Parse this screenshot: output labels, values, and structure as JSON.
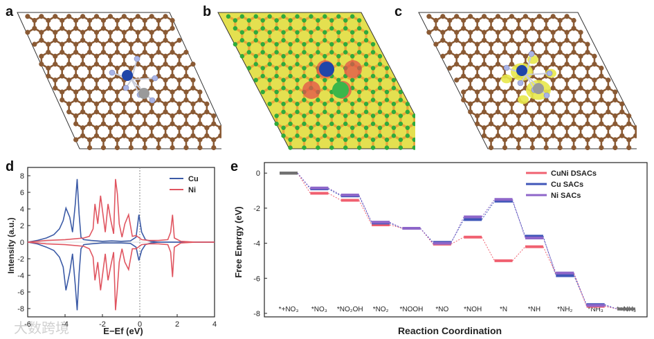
{
  "panels": {
    "a": {
      "label": "a"
    },
    "b": {
      "label": "b"
    },
    "c": {
      "label": "c"
    },
    "d": {
      "label": "d"
    },
    "e": {
      "label": "e"
    }
  },
  "colors": {
    "carbon": "#8a5a34",
    "nitrogen": "#a9b4e6",
    "cu": "#1f45a8",
    "ni": "#9a9a9a",
    "yellow": "#e8e84a",
    "cu_line": "#3b5aa6",
    "ni_line": "#e05560",
    "dsac": "#f06070",
    "cusac": "#3f56b8",
    "nisac": "#8e66c9",
    "start": "#707070"
  },
  "chart_data": [
    {
      "type": "line",
      "panel": "d",
      "xlabel": "E−Ef (eV)",
      "ylabel": "Intensity (a.u.)",
      "xlim": [
        -6,
        4
      ],
      "ylim": [
        -9,
        9
      ],
      "xticks": [
        -6,
        -4,
        -2,
        0,
        2,
        4
      ],
      "yticks": [
        -8,
        -6,
        -4,
        -2,
        0,
        2,
        4,
        6,
        8
      ],
      "legend_position": "top-right",
      "series": [
        {
          "name": "Cu",
          "x": [
            -6,
            -5.5,
            -5,
            -4.6,
            -4.3,
            -4.1,
            -3.95,
            -3.75,
            -3.6,
            -3.45,
            -3.35,
            -3.25,
            -3.15,
            -3.0,
            -2.6,
            -2.0,
            -1.5,
            -1.0,
            -0.5,
            -0.2,
            -0.05,
            0.1,
            0.3,
            0.6,
            1.0,
            2.0,
            4.0
          ],
          "y": [
            0,
            0.2,
            0.5,
            0.9,
            1.6,
            2.6,
            4.1,
            3.0,
            1.2,
            4.6,
            7.6,
            3.4,
            0.6,
            0.3,
            0.2,
            0.1,
            0.15,
            0.1,
            0.15,
            0.6,
            3.3,
            1.2,
            0.3,
            0.1,
            0,
            0,
            0
          ]
        },
        {
          "name": "Cu",
          "x": [
            -6,
            -5.5,
            -5,
            -4.6,
            -4.3,
            -4.1,
            -3.95,
            -3.75,
            -3.6,
            -3.45,
            -3.35,
            -3.25,
            -3.15,
            -3.0,
            -2.6,
            -2.0,
            -1.5,
            -1.0,
            -0.5,
            -0.2,
            -0.05,
            0.1,
            0.3,
            0.6,
            1.0,
            2.0,
            4.0
          ],
          "y": [
            0,
            -0.2,
            -0.6,
            -1.0,
            -1.8,
            -3.0,
            -5.8,
            -3.6,
            -1.4,
            -5.2,
            -8.2,
            -3.8,
            -0.8,
            -0.3,
            -0.2,
            -0.1,
            -0.1,
            -0.1,
            -0.15,
            -0.6,
            -2.2,
            -1.0,
            -0.3,
            -0.1,
            0,
            0,
            0
          ]
        },
        {
          "name": "Ni",
          "x": [
            -6,
            -5,
            -4,
            -3,
            -2.7,
            -2.5,
            -2.4,
            -2.25,
            -2.1,
            -1.95,
            -1.85,
            -1.7,
            -1.55,
            -1.4,
            -1.3,
            -1.2,
            -1.1,
            -0.95,
            -0.8,
            -0.6,
            -0.4,
            -0.2,
            0.1,
            0.5,
            1.0,
            1.5,
            1.65,
            1.75,
            1.85,
            2.2,
            3.0,
            4.0
          ],
          "y": [
            0,
            0.2,
            0.3,
            0.5,
            0.7,
            1.6,
            4.6,
            2.2,
            5.6,
            3.0,
            1.2,
            4.6,
            2.6,
            1.0,
            7.6,
            5.8,
            2.2,
            0.6,
            2.2,
            3.3,
            0.7,
            0.8,
            0.3,
            0.2,
            0.2,
            0.3,
            1.2,
            3.3,
            0.5,
            0.1,
            0,
            0
          ]
        },
        {
          "name": "Ni",
          "x": [
            -6,
            -5,
            -4,
            -3,
            -2.7,
            -2.5,
            -2.4,
            -2.25,
            -2.1,
            -1.95,
            -1.85,
            -1.7,
            -1.55,
            -1.4,
            -1.3,
            -1.2,
            -1.1,
            -0.95,
            -0.8,
            -0.6,
            -0.4,
            -0.2,
            0.1,
            0.5,
            1.0,
            1.5,
            1.65,
            1.75,
            1.85,
            2.2,
            3.0,
            4.0
          ],
          "y": [
            0,
            -0.2,
            -0.3,
            -0.5,
            -0.8,
            -1.8,
            -4.6,
            -2.4,
            -5.8,
            -3.2,
            -1.4,
            -4.6,
            -2.8,
            -1.2,
            -8.2,
            -5.6,
            -2.4,
            -0.8,
            -2.4,
            -3.3,
            -0.8,
            -0.8,
            -0.3,
            -0.2,
            -0.2,
            -0.3,
            -1.2,
            -4.2,
            -0.6,
            -0.1,
            0,
            0
          ]
        }
      ]
    },
    {
      "type": "line",
      "panel": "e",
      "xlabel": "Reaction Coordination",
      "ylabel": "Free Energy (eV)",
      "ylim": [
        -8.2,
        0.6
      ],
      "yticks": [
        0,
        -2,
        -4,
        -6,
        -8
      ],
      "legend_position": "top-right",
      "categories": [
        "*+NO₃",
        "*NO₃",
        "*NO₂OH",
        "*NO₂",
        "*NOOH",
        "*NO",
        "*NOH",
        "*N",
        "*NH",
        "*NH₂",
        "*NH₃",
        "*+NH₃"
      ],
      "series": [
        {
          "name": "CuNi DSACs",
          "values": [
            0,
            -1.15,
            -1.55,
            -2.95,
            -3.15,
            -4.05,
            -3.65,
            -5.0,
            -4.2,
            -5.75,
            -7.6,
            -7.75
          ]
        },
        {
          "name": "Cu SACs",
          "values": [
            0,
            -0.9,
            -1.3,
            -2.85,
            -3.15,
            -3.95,
            -2.65,
            -1.6,
            -3.6,
            -5.85,
            -7.5,
            -7.75
          ]
        },
        {
          "name": "Ni SACs",
          "values": [
            0,
            -0.85,
            -1.25,
            -2.8,
            -3.15,
            -4.0,
            -2.5,
            -1.5,
            -3.7,
            -5.7,
            -7.55,
            -7.75
          ]
        }
      ]
    }
  ],
  "watermark": {
    "text": "大数跨境"
  }
}
